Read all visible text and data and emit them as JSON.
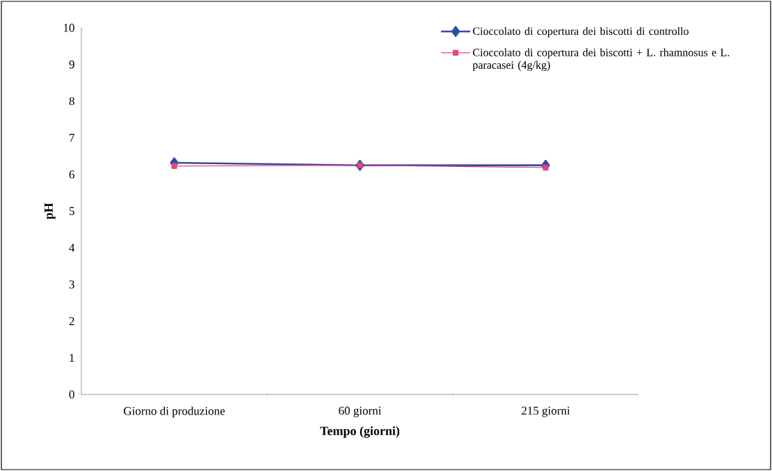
{
  "chart_data": {
    "type": "line",
    "xlabel": "Tempo (giorni)",
    "ylabel": "pH",
    "categories": [
      "Giorno di produzione",
      "60 giorni",
      "215 giorni"
    ],
    "series": [
      {
        "name": "Cioccolato di copertura dei biscotti di controllo",
        "color": "#2e4fa0",
        "marker": "diamond",
        "values": [
          6.32,
          6.25,
          6.25
        ]
      },
      {
        "name": "Cioccolato di copertura dei biscotti + L. rhamnosus e L. paracasei (4g/kg)",
        "color": "#e8457f",
        "marker": "square",
        "values": [
          6.23,
          6.25,
          6.19
        ]
      }
    ],
    "ylim": [
      0,
      10
    ],
    "yticks": [
      0,
      1,
      2,
      3,
      4,
      5,
      6,
      7,
      8,
      9,
      10
    ],
    "grid": false,
    "legend": "top right",
    "line_style": "solid"
  }
}
